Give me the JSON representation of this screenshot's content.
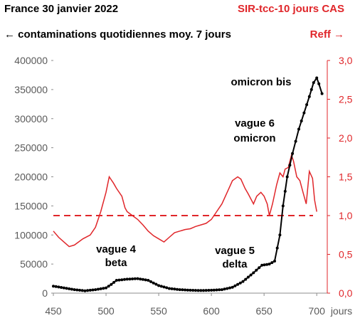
{
  "header": {
    "title_left": "France  30 janvier 2022",
    "title_right": "SIR-tcc-10 jours CAS",
    "left_axis_title": "← contaminations quotidiennes moy. 7 jours",
    "right_axis_title": "Reff →"
  },
  "chart_data": {
    "type": "line",
    "xlabel": "jours",
    "xlim": [
      450,
      710
    ],
    "x_ticks": [
      450,
      500,
      550,
      600,
      650,
      700
    ],
    "y_left": {
      "ylim": [
        0,
        400000
      ],
      "ticks": [
        0,
        50000,
        100000,
        150000,
        200000,
        250000,
        300000,
        350000,
        400000
      ],
      "tick_labels": [
        "0",
        "50000",
        "100000",
        "150000",
        "200000",
        "250000",
        "300000",
        "350000",
        "400000"
      ]
    },
    "y_right": {
      "ylim": [
        0,
        3
      ],
      "ticks": [
        0,
        0.5,
        1,
        1.5,
        2,
        2.5,
        3
      ],
      "tick_labels": [
        "0,0",
        "0,5",
        "1,0",
        "1,5",
        "2,0",
        "2,5",
        "3,0"
      ],
      "color": "#e0262a"
    },
    "reference_line": {
      "axis": "right",
      "value": 1.0,
      "style": "dashed",
      "color": "#e0262a"
    },
    "annotations": [
      {
        "id": "vague4",
        "lines": [
          "vague 4",
          "beta"
        ]
      },
      {
        "id": "vague5",
        "lines": [
          "vague 5",
          "delta"
        ]
      },
      {
        "id": "vague6",
        "lines": [
          "vague 6",
          "omicron"
        ]
      },
      {
        "id": "omicronbis",
        "lines": [
          "omicron bis"
        ]
      }
    ],
    "series": [
      {
        "axis": "left",
        "color": "#000000",
        "style": "line-with-markers",
        "points": [
          [
            450,
            12000
          ],
          [
            460,
            9000
          ],
          [
            470,
            6000
          ],
          [
            480,
            4000
          ],
          [
            490,
            6000
          ],
          [
            500,
            9000
          ],
          [
            505,
            15000
          ],
          [
            510,
            22000
          ],
          [
            520,
            24000
          ],
          [
            530,
            25000
          ],
          [
            540,
            22000
          ],
          [
            550,
            13000
          ],
          [
            560,
            8000
          ],
          [
            570,
            6000
          ],
          [
            580,
            5000
          ],
          [
            590,
            4500
          ],
          [
            600,
            5000
          ],
          [
            610,
            6000
          ],
          [
            620,
            10000
          ],
          [
            630,
            20000
          ],
          [
            640,
            35000
          ],
          [
            648,
            48000
          ],
          [
            655,
            50000
          ],
          [
            660,
            55000
          ],
          [
            665,
            100000
          ],
          [
            668,
            150000
          ],
          [
            672,
            200000
          ],
          [
            677,
            240000
          ],
          [
            683,
            282000
          ],
          [
            688,
            310000
          ],
          [
            693,
            338000
          ],
          [
            697,
            362000
          ],
          [
            700,
            370000
          ],
          [
            702,
            360000
          ],
          [
            705,
            343000
          ]
        ]
      },
      {
        "axis": "right",
        "color": "#e0262a",
        "style": "line",
        "points": [
          [
            450,
            0.8
          ],
          [
            455,
            0.72
          ],
          [
            460,
            0.66
          ],
          [
            465,
            0.6
          ],
          [
            470,
            0.62
          ],
          [
            478,
            0.7
          ],
          [
            485,
            0.75
          ],
          [
            490,
            0.85
          ],
          [
            495,
            1.05
          ],
          [
            500,
            1.3
          ],
          [
            503,
            1.5
          ],
          [
            507,
            1.42
          ],
          [
            510,
            1.35
          ],
          [
            515,
            1.25
          ],
          [
            518,
            1.1
          ],
          [
            520,
            1.05
          ],
          [
            525,
            1.0
          ],
          [
            530,
            0.95
          ],
          [
            535,
            0.88
          ],
          [
            540,
            0.8
          ],
          [
            545,
            0.74
          ],
          [
            550,
            0.7
          ],
          [
            555,
            0.66
          ],
          [
            560,
            0.72
          ],
          [
            565,
            0.78
          ],
          [
            570,
            0.8
          ],
          [
            575,
            0.82
          ],
          [
            580,
            0.83
          ],
          [
            585,
            0.86
          ],
          [
            590,
            0.88
          ],
          [
            595,
            0.9
          ],
          [
            600,
            0.95
          ],
          [
            605,
            1.05
          ],
          [
            610,
            1.15
          ],
          [
            615,
            1.3
          ],
          [
            620,
            1.45
          ],
          [
            625,
            1.5
          ],
          [
            628,
            1.47
          ],
          [
            632,
            1.35
          ],
          [
            635,
            1.28
          ],
          [
            640,
            1.15
          ],
          [
            643,
            1.25
          ],
          [
            647,
            1.3
          ],
          [
            650,
            1.25
          ],
          [
            653,
            1.15
          ],
          [
            655,
            1.0
          ],
          [
            658,
            1.15
          ],
          [
            662,
            1.4
          ],
          [
            665,
            1.55
          ],
          [
            668,
            1.5
          ],
          [
            670,
            1.6
          ],
          [
            673,
            1.62
          ],
          [
            676,
            1.78
          ],
          [
            678,
            1.7
          ],
          [
            681,
            1.5
          ],
          [
            684,
            1.45
          ],
          [
            687,
            1.3
          ],
          [
            690,
            1.15
          ],
          [
            693,
            1.57
          ],
          [
            696,
            1.48
          ],
          [
            698,
            1.2
          ],
          [
            700,
            1.05
          ]
        ]
      }
    ]
  }
}
